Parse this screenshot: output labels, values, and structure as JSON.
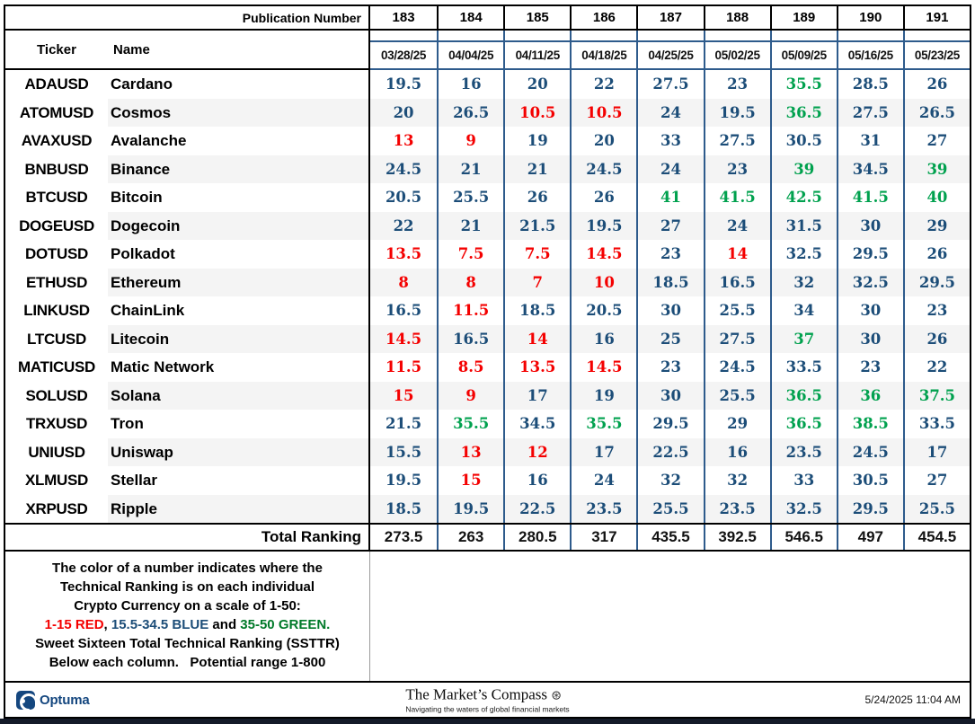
{
  "colors": {
    "red": "#f40000",
    "blue": "#1c4d78",
    "green": "#00a14e",
    "green_dark": "#007a29",
    "grid": "#2e5b8c",
    "stripe": "#f4f4f4",
    "optuma": "#15477f"
  },
  "header": {
    "publication_label": "Publication Number",
    "publication_numbers": [
      "183",
      "184",
      "185",
      "186",
      "187",
      "188",
      "189",
      "190",
      "191"
    ],
    "ticker_label": "Ticker",
    "name_label": "Name",
    "dates": [
      "03/28/25",
      "04/04/25",
      "04/11/25",
      "04/18/25",
      "04/25/25",
      "05/02/25",
      "05/09/25",
      "05/16/25",
      "05/23/25"
    ]
  },
  "rows": [
    {
      "ticker": "ADAUSD",
      "name": "Cardano",
      "values": [
        "19.5",
        "16",
        "20",
        "22",
        "27.5",
        "23",
        "35.5",
        "28.5",
        "26"
      ],
      "colors": [
        "b",
        "b",
        "b",
        "b",
        "b",
        "b",
        "g",
        "b",
        "b"
      ]
    },
    {
      "ticker": "ATOMUSD",
      "name": "Cosmos",
      "values": [
        "20",
        "26.5",
        "10.5",
        "10.5",
        "24",
        "19.5",
        "36.5",
        "27.5",
        "26.5"
      ],
      "colors": [
        "b",
        "b",
        "r",
        "r",
        "b",
        "b",
        "g",
        "b",
        "b"
      ]
    },
    {
      "ticker": "AVAXUSD",
      "name": "Avalanche",
      "values": [
        "13",
        "9",
        "19",
        "20",
        "33",
        "27.5",
        "30.5",
        "31",
        "27"
      ],
      "colors": [
        "r",
        "r",
        "b",
        "b",
        "b",
        "b",
        "b",
        "b",
        "b"
      ]
    },
    {
      "ticker": "BNBUSD",
      "name": "Binance",
      "values": [
        "24.5",
        "21",
        "21",
        "24.5",
        "24",
        "23",
        "39",
        "34.5",
        "39"
      ],
      "colors": [
        "b",
        "b",
        "b",
        "b",
        "b",
        "b",
        "g",
        "b",
        "g"
      ]
    },
    {
      "ticker": "BTCUSD",
      "name": "Bitcoin",
      "values": [
        "20.5",
        "25.5",
        "26",
        "26",
        "41",
        "41.5",
        "42.5",
        "41.5",
        "40"
      ],
      "colors": [
        "b",
        "b",
        "b",
        "b",
        "g",
        "g",
        "g",
        "g",
        "g"
      ]
    },
    {
      "ticker": "DOGEUSD",
      "name": "Dogecoin",
      "values": [
        "22",
        "21",
        "21.5",
        "19.5",
        "27",
        "24",
        "31.5",
        "30",
        "29"
      ],
      "colors": [
        "b",
        "b",
        "b",
        "b",
        "b",
        "b",
        "b",
        "b",
        "b"
      ]
    },
    {
      "ticker": "DOTUSD",
      "name": "Polkadot",
      "values": [
        "13.5",
        "7.5",
        "7.5",
        "14.5",
        "23",
        "14",
        "32.5",
        "29.5",
        "26"
      ],
      "colors": [
        "r",
        "r",
        "r",
        "r",
        "b",
        "r",
        "b",
        "b",
        "b"
      ]
    },
    {
      "ticker": "ETHUSD",
      "name": "Ethereum",
      "values": [
        "8",
        "8",
        "7",
        "10",
        "18.5",
        "16.5",
        "32",
        "32.5",
        "29.5"
      ],
      "colors": [
        "r",
        "r",
        "r",
        "r",
        "b",
        "b",
        "b",
        "b",
        "b"
      ]
    },
    {
      "ticker": "LINKUSD",
      "name": "ChainLink",
      "values": [
        "16.5",
        "11.5",
        "18.5",
        "20.5",
        "30",
        "25.5",
        "34",
        "30",
        "23"
      ],
      "colors": [
        "b",
        "r",
        "b",
        "b",
        "b",
        "b",
        "b",
        "b",
        "b"
      ]
    },
    {
      "ticker": "LTCUSD",
      "name": "Litecoin",
      "values": [
        "14.5",
        "16.5",
        "14",
        "16",
        "25",
        "27.5",
        "37",
        "30",
        "26"
      ],
      "colors": [
        "r",
        "b",
        "r",
        "b",
        "b",
        "b",
        "g",
        "b",
        "b"
      ]
    },
    {
      "ticker": "MATICUSD",
      "name": "Matic Network",
      "values": [
        "11.5",
        "8.5",
        "13.5",
        "14.5",
        "23",
        "24.5",
        "33.5",
        "23",
        "22"
      ],
      "colors": [
        "r",
        "r",
        "r",
        "r",
        "b",
        "b",
        "b",
        "b",
        "b"
      ]
    },
    {
      "ticker": "SOLUSD",
      "name": "Solana",
      "values": [
        "15",
        "9",
        "17",
        "19",
        "30",
        "25.5",
        "36.5",
        "36",
        "37.5"
      ],
      "colors": [
        "r",
        "r",
        "b",
        "b",
        "b",
        "b",
        "g",
        "g",
        "g"
      ]
    },
    {
      "ticker": "TRXUSD",
      "name": "Tron",
      "values": [
        "21.5",
        "35.5",
        "34.5",
        "35.5",
        "29.5",
        "29",
        "36.5",
        "38.5",
        "33.5"
      ],
      "colors": [
        "b",
        "g",
        "b",
        "g",
        "b",
        "b",
        "g",
        "g",
        "b"
      ]
    },
    {
      "ticker": "UNIUSD",
      "name": "Uniswap",
      "values": [
        "15.5",
        "13",
        "12",
        "17",
        "22.5",
        "16",
        "23.5",
        "24.5",
        "17"
      ],
      "colors": [
        "b",
        "r",
        "r",
        "b",
        "b",
        "b",
        "b",
        "b",
        "b"
      ]
    },
    {
      "ticker": "XLMUSD",
      "name": "Stellar",
      "values": [
        "19.5",
        "15",
        "16",
        "24",
        "32",
        "32",
        "33",
        "30.5",
        "27"
      ],
      "colors": [
        "b",
        "r",
        "b",
        "b",
        "b",
        "b",
        "b",
        "b",
        "b"
      ]
    },
    {
      "ticker": "XRPUSD",
      "name": "Ripple",
      "values": [
        "18.5",
        "19.5",
        "22.5",
        "23.5",
        "25.5",
        "23.5",
        "32.5",
        "29.5",
        "25.5"
      ],
      "colors": [
        "b",
        "b",
        "b",
        "b",
        "b",
        "b",
        "b",
        "b",
        "b"
      ]
    }
  ],
  "total": {
    "label": "Total Ranking",
    "values": [
      "273.5",
      "263",
      "280.5",
      "317",
      "435.5",
      "392.5",
      "546.5",
      "497",
      "454.5"
    ]
  },
  "legend": {
    "line1": "The color of a number indicates where the",
    "line2": "Technical Ranking is on each individual",
    "line3": "Crypto Currency on a scale of 1-50:",
    "scale_parts": [
      {
        "text": "1-15 RED",
        "color": "red"
      },
      {
        "text": ", ",
        "color": "black"
      },
      {
        "text": "15.5-34.5 BLUE",
        "color": "blue"
      },
      {
        "text": " and ",
        "color": "black"
      },
      {
        "text": "35-50 GREEN.",
        "color": "green_dark"
      }
    ],
    "line5": "Sweet Sixteen Total Technical Ranking (SSTTR)",
    "line6": "Below each column.   Potential range 1-800"
  },
  "footer": {
    "optuma_label": "Optuma",
    "brand_name": "The Market’s Compass",
    "compass_glyph": "⊛",
    "brand_tagline": "Navigating the waters of global financial markets",
    "timestamp": "5/24/2025 11:04 AM"
  }
}
